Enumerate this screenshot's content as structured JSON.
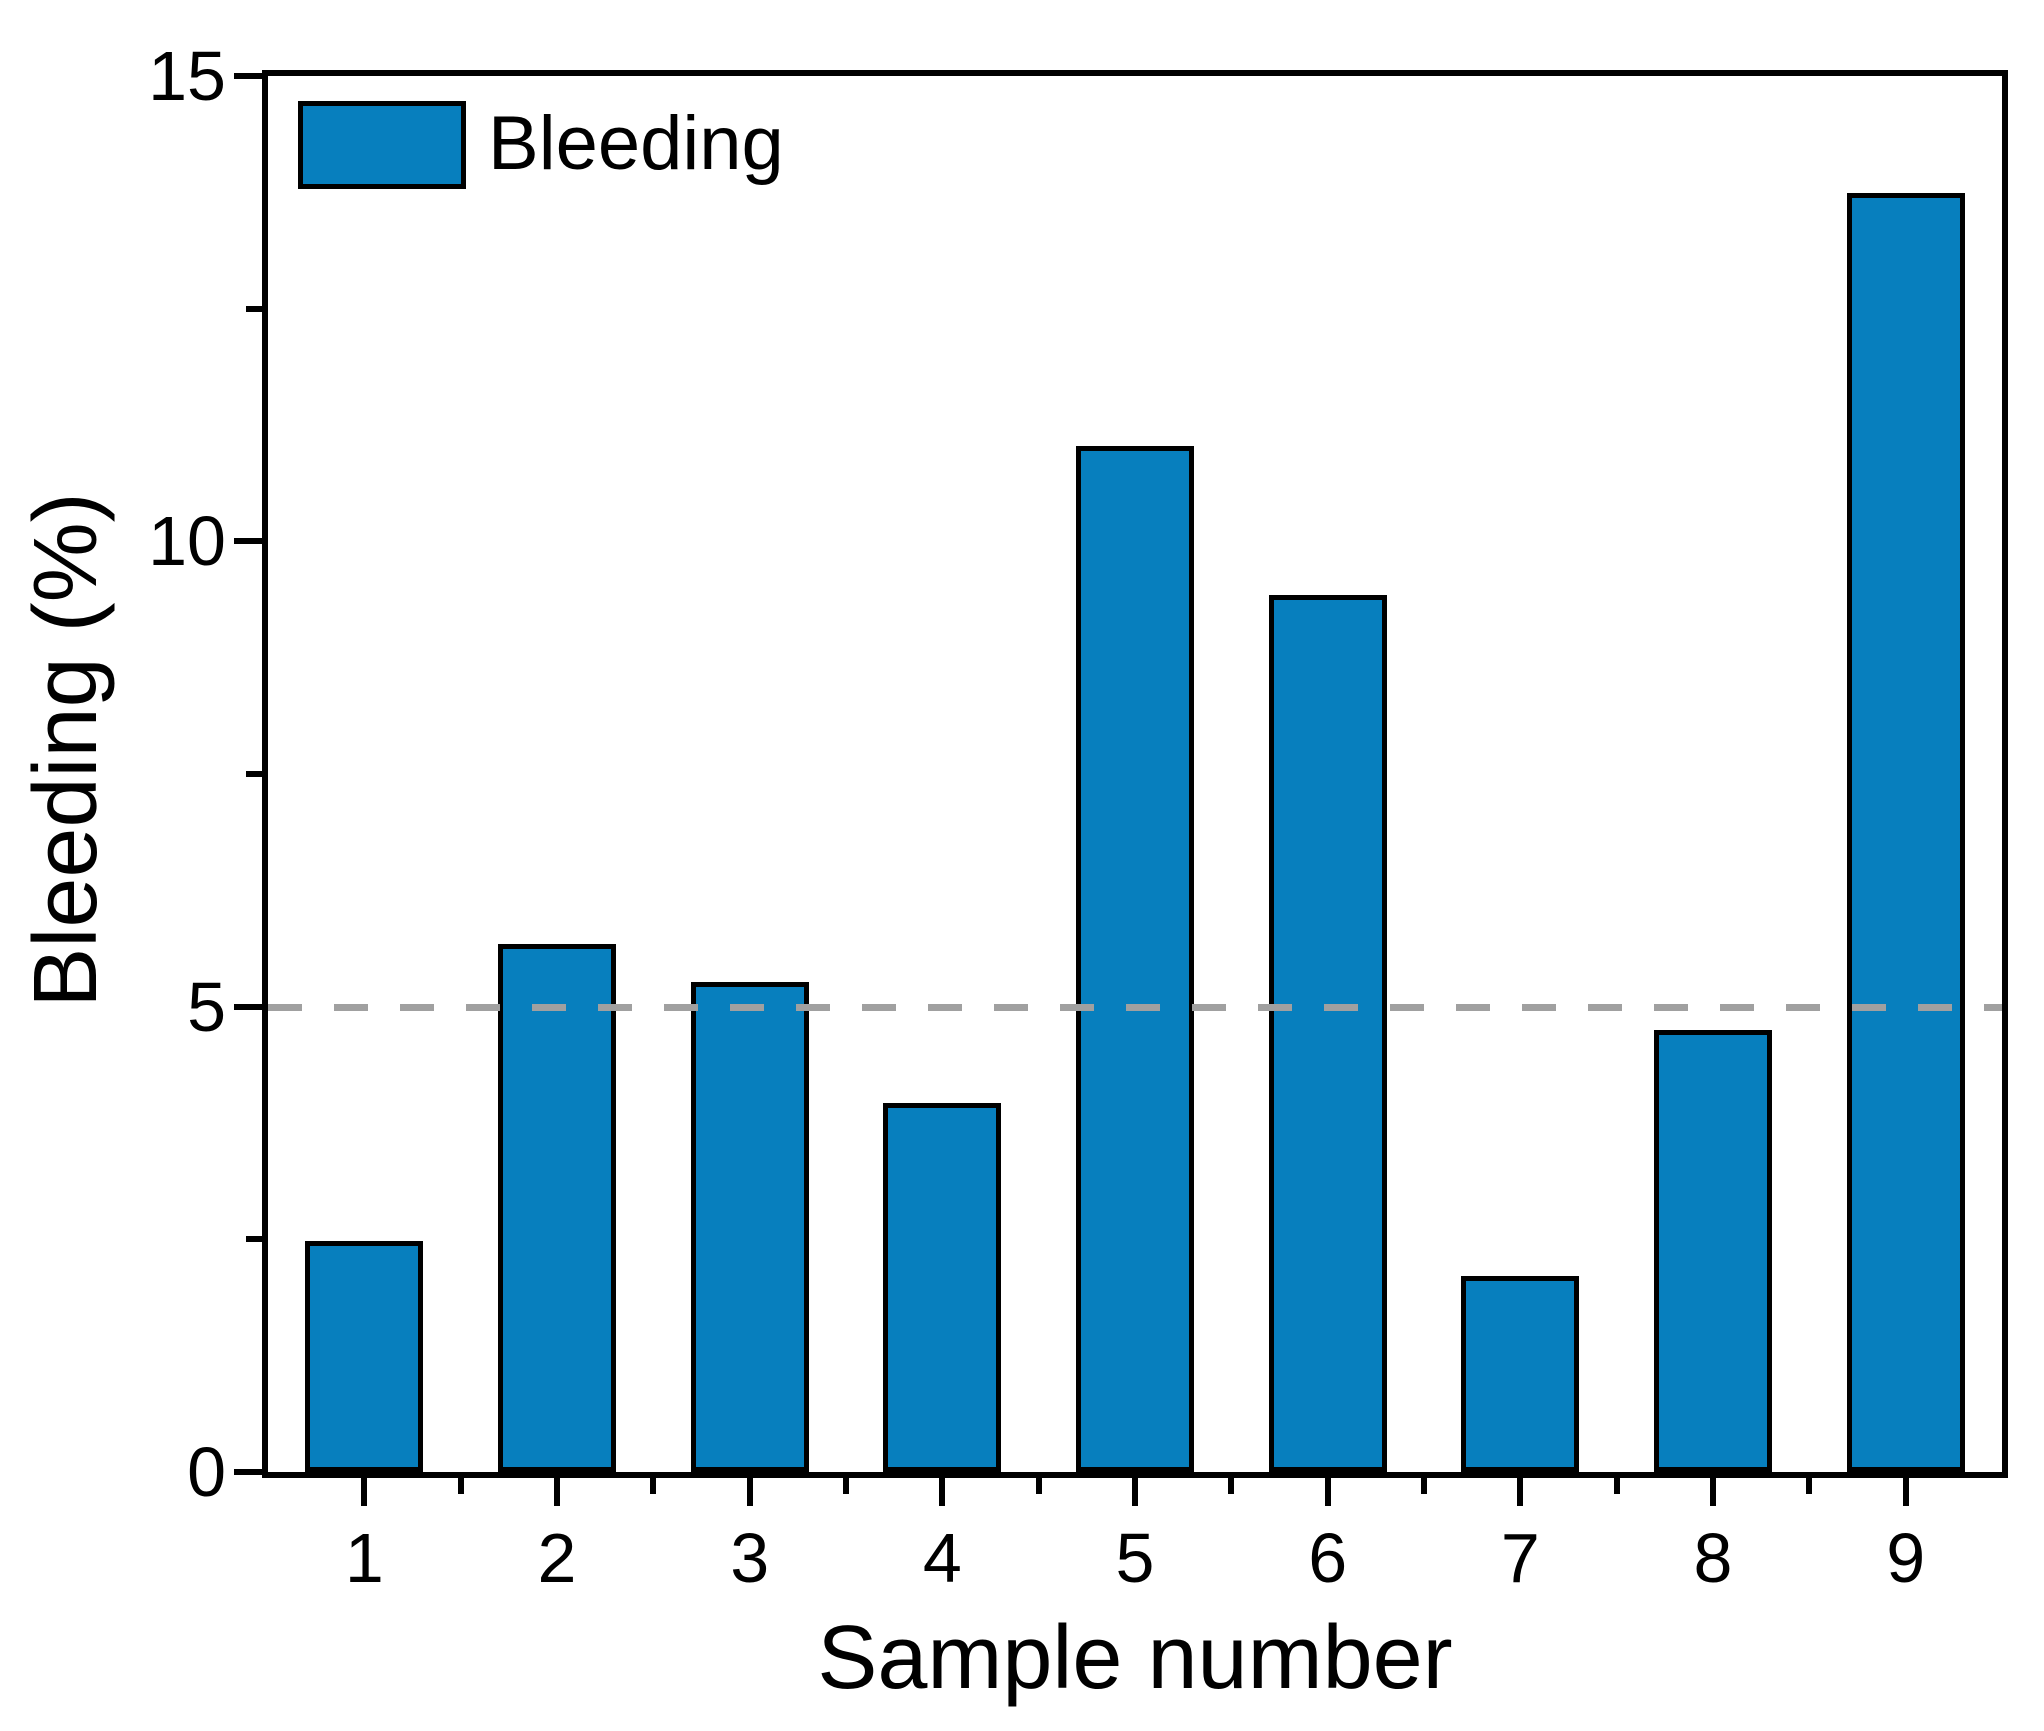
{
  "chart_data": {
    "type": "bar",
    "title": "",
    "categories": [
      "1",
      "2",
      "3",
      "4",
      "5",
      "6",
      "7",
      "8",
      "9"
    ],
    "series": [
      {
        "name": "Bleeding",
        "values": [
          2.48,
          5.67,
          5.27,
          3.96,
          11.02,
          9.42,
          2.11,
          4.75,
          13.74
        ],
        "color": "#077FBE"
      }
    ],
    "xlabel": "Sample number",
    "ylabel": "Bleeding (%)",
    "ylim": [
      0,
      15
    ],
    "y_major_ticks": [
      {
        "value": 0,
        "label": "0"
      },
      {
        "value": 5,
        "label": "5"
      },
      {
        "value": 10,
        "label": "10"
      },
      {
        "value": 15,
        "label": "15"
      }
    ],
    "y_minor_tick_values": [
      2.5,
      7.5,
      12.5
    ],
    "x_minor_ticks_at_category_boundaries": true,
    "reference_line": {
      "value": 5,
      "style": "dashed",
      "color": "#A0A0A0"
    },
    "legend": {
      "position": "top-left",
      "entries": [
        {
          "label": "Bleeding",
          "swatch_color": "#077FBE"
        }
      ]
    },
    "grid": false,
    "bar_border_color": "#000000",
    "axis_color": "#000000",
    "background_color": "#FFFFFF"
  }
}
